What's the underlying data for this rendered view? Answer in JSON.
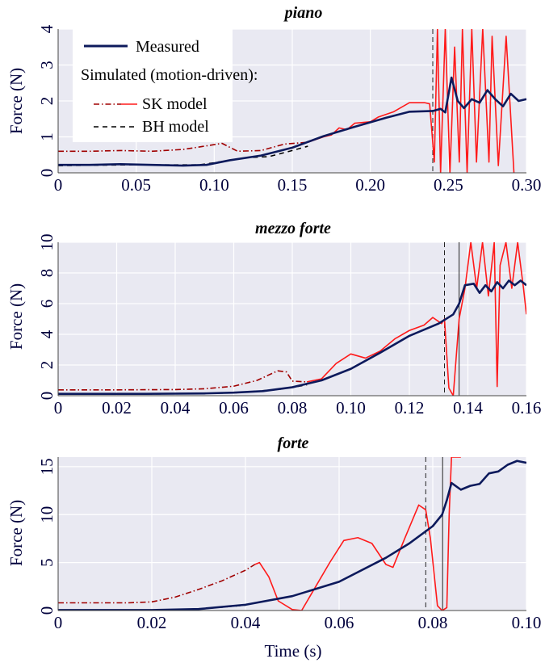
{
  "figure": {
    "xlabel": "Time (s)"
  },
  "legend": {
    "measured": "Measured",
    "header": "Simulated (motion-driven):",
    "sk": "SK model",
    "bh": "BH model"
  },
  "colors": {
    "measured": "#0d1a5c",
    "sk_smooth": "#a00000",
    "sk_osc": "#ff1a1a",
    "bh": "#000000",
    "plot_bg": "#e9e9f2",
    "grid": "#ffffff",
    "axis_text": "#00003c"
  },
  "chart_data": [
    {
      "type": "line",
      "title": "piano",
      "ylabel": "Force (N)",
      "xlim": [
        0,
        0.3
      ],
      "ylim": [
        0,
        4
      ],
      "xticks": [
        0,
        0.05,
        0.1,
        0.15,
        0.2,
        0.25,
        0.3
      ],
      "xtick_labels": [
        "0",
        "0.05",
        "0.10",
        "0.15",
        "0.20",
        "0.25",
        "0.30"
      ],
      "yticks": [
        0,
        1,
        2,
        3,
        4
      ],
      "ytick_labels": [
        "0",
        "1",
        "2",
        "3",
        "4"
      ],
      "vlines": [
        {
          "x": 0.24,
          "style": "dashed"
        }
      ],
      "series": [
        {
          "name": "Measured",
          "color": "#0d1a5c",
          "dash": "solid",
          "points": [
            [
              0,
              0.22
            ],
            [
              0.02,
              0.22
            ],
            [
              0.04,
              0.24
            ],
            [
              0.06,
              0.22
            ],
            [
              0.08,
              0.2
            ],
            [
              0.095,
              0.22
            ],
            [
              0.11,
              0.35
            ],
            [
              0.13,
              0.48
            ],
            [
              0.15,
              0.7
            ],
            [
              0.17,
              1.02
            ],
            [
              0.19,
              1.28
            ],
            [
              0.21,
              1.53
            ],
            [
              0.225,
              1.7
            ],
            [
              0.24,
              1.72
            ],
            [
              0.245,
              1.78
            ],
            [
              0.248,
              1.68
            ],
            [
              0.252,
              2.65
            ],
            [
              0.256,
              2.0
            ],
            [
              0.26,
              1.8
            ],
            [
              0.265,
              2.05
            ],
            [
              0.27,
              1.95
            ],
            [
              0.275,
              2.3
            ],
            [
              0.28,
              2.05
            ],
            [
              0.285,
              1.85
            ],
            [
              0.29,
              2.2
            ],
            [
              0.295,
              2.0
            ],
            [
              0.3,
              2.05
            ]
          ]
        },
        {
          "name": "SK model",
          "color": "#a00000",
          "dash": "dashdot",
          "points": [
            [
              0,
              0.6
            ],
            [
              0.02,
              0.6
            ],
            [
              0.04,
              0.62
            ],
            [
              0.06,
              0.6
            ],
            [
              0.08,
              0.65
            ],
            [
              0.095,
              0.75
            ],
            [
              0.105,
              0.82
            ],
            [
              0.115,
              0.6
            ],
            [
              0.13,
              0.62
            ],
            [
              0.145,
              0.8
            ],
            [
              0.16,
              0.85
            ]
          ]
        },
        {
          "name": "SK model",
          "color": "#ff1a1a",
          "dash": "solid",
          "points": [
            [
              0.16,
              0.85
            ],
            [
              0.17,
              1.0
            ],
            [
              0.175,
              1.05
            ],
            [
              0.18,
              1.25
            ],
            [
              0.185,
              1.2
            ],
            [
              0.19,
              1.38
            ],
            [
              0.2,
              1.42
            ],
            [
              0.205,
              1.55
            ],
            [
              0.215,
              1.7
            ],
            [
              0.225,
              1.95
            ],
            [
              0.235,
              1.95
            ],
            [
              0.238,
              1.92
            ],
            [
              0.241,
              0.3
            ],
            [
              0.243,
              4.0
            ],
            [
              0.245,
              0.0
            ],
            [
              0.248,
              4.0
            ],
            [
              0.251,
              0.0
            ],
            [
              0.254,
              3.5
            ],
            [
              0.257,
              0.3
            ],
            [
              0.259,
              4.0
            ],
            [
              0.262,
              0.0
            ],
            [
              0.265,
              4.0
            ],
            [
              0.268,
              0.3
            ],
            [
              0.272,
              4.0
            ],
            [
              0.276,
              0.3
            ],
            [
              0.278,
              3.8
            ],
            [
              0.282,
              0.2
            ],
            [
              0.287,
              3.8
            ],
            [
              0.292,
              0.0
            ]
          ]
        },
        {
          "name": "BH model",
          "color": "#000000",
          "dash": "dashed",
          "points": [
            [
              0,
              0.2
            ],
            [
              0.04,
              0.22
            ],
            [
              0.07,
              0.22
            ],
            [
              0.09,
              0.22
            ],
            [
              0.1,
              0.28
            ],
            [
              0.12,
              0.42
            ],
            [
              0.135,
              0.45
            ],
            [
              0.15,
              0.62
            ],
            [
              0.16,
              0.74
            ]
          ]
        }
      ]
    },
    {
      "type": "line",
      "title": "mezzo forte",
      "ylabel": "Force (N)",
      "xlim": [
        0,
        0.16
      ],
      "ylim": [
        0,
        10
      ],
      "xticks": [
        0,
        0.02,
        0.04,
        0.06,
        0.08,
        0.1,
        0.12,
        0.14,
        0.16
      ],
      "xtick_labels": [
        "0",
        "0.02",
        "0.04",
        "0.06",
        "0.08",
        "0.10",
        "0.12",
        "0.14",
        "0.16"
      ],
      "yticks": [
        0,
        2,
        4,
        6,
        8,
        10
      ],
      "ytick_labels": [
        "0",
        "2",
        "4",
        "6",
        "8",
        "10"
      ],
      "vlines": [
        {
          "x": 0.132,
          "style": "dashed"
        },
        {
          "x": 0.137,
          "style": "solid"
        }
      ],
      "series": [
        {
          "name": "Measured",
          "color": "#0d1a5c",
          "dash": "solid",
          "points": [
            [
              0,
              0.12
            ],
            [
              0.03,
              0.12
            ],
            [
              0.05,
              0.15
            ],
            [
              0.06,
              0.2
            ],
            [
              0.07,
              0.3
            ],
            [
              0.08,
              0.55
            ],
            [
              0.09,
              1.0
            ],
            [
              0.1,
              1.75
            ],
            [
              0.11,
              2.8
            ],
            [
              0.12,
              3.9
            ],
            [
              0.13,
              4.7
            ],
            [
              0.135,
              5.3
            ],
            [
              0.137,
              6.0
            ],
            [
              0.139,
              7.2
            ],
            [
              0.142,
              7.3
            ],
            [
              0.144,
              6.7
            ],
            [
              0.146,
              7.2
            ],
            [
              0.148,
              6.8
            ],
            [
              0.15,
              7.4
            ],
            [
              0.152,
              7.0
            ],
            [
              0.154,
              7.5
            ],
            [
              0.156,
              7.2
            ],
            [
              0.158,
              7.5
            ],
            [
              0.16,
              7.2
            ]
          ]
        },
        {
          "name": "SK model",
          "color": "#a00000",
          "dash": "dashdot",
          "points": [
            [
              0,
              0.38
            ],
            [
              0.02,
              0.38
            ],
            [
              0.04,
              0.4
            ],
            [
              0.05,
              0.45
            ],
            [
              0.06,
              0.62
            ],
            [
              0.068,
              1.0
            ],
            [
              0.075,
              1.62
            ],
            [
              0.078,
              1.55
            ],
            [
              0.08,
              0.95
            ],
            [
              0.085,
              0.9
            ]
          ]
        },
        {
          "name": "SK model",
          "color": "#ff1a1a",
          "dash": "solid",
          "points": [
            [
              0.085,
              0.9
            ],
            [
              0.09,
              1.1
            ],
            [
              0.095,
              2.1
            ],
            [
              0.1,
              2.72
            ],
            [
              0.105,
              2.45
            ],
            [
              0.11,
              2.9
            ],
            [
              0.115,
              3.7
            ],
            [
              0.12,
              4.25
            ],
            [
              0.125,
              4.6
            ],
            [
              0.128,
              5.1
            ],
            [
              0.131,
              4.7
            ],
            [
              0.132,
              5.0
            ],
            [
              0.1335,
              0.5
            ],
            [
              0.135,
              0.0
            ],
            [
              0.137,
              5.0
            ],
            [
              0.139,
              7.0
            ],
            [
              0.141,
              10
            ],
            [
              0.143,
              7.0
            ],
            [
              0.145,
              10
            ],
            [
              0.147,
              6.5
            ],
            [
              0.149,
              10
            ],
            [
              0.15,
              0.6
            ],
            [
              0.151,
              8.5
            ],
            [
              0.153,
              10
            ],
            [
              0.155,
              7.0
            ],
            [
              0.157,
              10
            ],
            [
              0.159,
              7.0
            ],
            [
              0.16,
              5.3
            ]
          ]
        },
        {
          "name": "BH model",
          "color": "#000000",
          "dash": "dashed",
          "points": [
            [
              0,
              0.1
            ],
            [
              0.04,
              0.12
            ],
            [
              0.06,
              0.18
            ],
            [
              0.075,
              0.4
            ],
            [
              0.085,
              0.7
            ]
          ]
        }
      ]
    },
    {
      "type": "line",
      "title": "forte",
      "ylabel": "Force (N)",
      "xlim": [
        0,
        0.1
      ],
      "ylim": [
        0,
        16
      ],
      "xticks": [
        0,
        0.02,
        0.04,
        0.06,
        0.08,
        0.1
      ],
      "xtick_labels": [
        "0",
        "0.02",
        "0.04",
        "0.06",
        "0.08",
        "0.10"
      ],
      "yticks": [
        0,
        5,
        10,
        15
      ],
      "ytick_labels": [
        "0",
        "5",
        "10",
        "15"
      ],
      "vlines": [
        {
          "x": 0.0785,
          "style": "dashed"
        },
        {
          "x": 0.0821,
          "style": "solid"
        }
      ],
      "series": [
        {
          "name": "Measured",
          "color": "#0d1a5c",
          "dash": "solid",
          "points": [
            [
              0,
              0.05
            ],
            [
              0.02,
              0.05
            ],
            [
              0.03,
              0.15
            ],
            [
              0.04,
              0.6
            ],
            [
              0.05,
              1.5
            ],
            [
              0.06,
              3.0
            ],
            [
              0.07,
              5.5
            ],
            [
              0.075,
              7.0
            ],
            [
              0.08,
              8.8
            ],
            [
              0.082,
              10
            ],
            [
              0.083,
              11.5
            ],
            [
              0.084,
              13.3
            ],
            [
              0.086,
              12.6
            ],
            [
              0.088,
              13.0
            ],
            [
              0.09,
              13.2
            ],
            [
              0.092,
              14.3
            ],
            [
              0.094,
              14.5
            ],
            [
              0.096,
              15.2
            ],
            [
              0.098,
              15.6
            ],
            [
              0.1,
              15.4
            ]
          ]
        },
        {
          "name": "SK model",
          "color": "#a00000",
          "dash": "dashdot",
          "points": [
            [
              0,
              0.8
            ],
            [
              0.015,
              0.8
            ],
            [
              0.02,
              0.9
            ],
            [
              0.025,
              1.4
            ],
            [
              0.03,
              2.2
            ],
            [
              0.035,
              3.1
            ],
            [
              0.04,
              4.2
            ],
            [
              0.042,
              4.8
            ]
          ]
        },
        {
          "name": "SK model",
          "color": "#ff1a1a",
          "dash": "solid",
          "points": [
            [
              0.042,
              4.8
            ],
            [
              0.043,
              5.0
            ],
            [
              0.045,
              3.5
            ],
            [
              0.047,
              1.0
            ],
            [
              0.05,
              0.1
            ],
            [
              0.052,
              0.0
            ],
            [
              0.055,
              2.5
            ],
            [
              0.058,
              5.0
            ],
            [
              0.061,
              7.3
            ],
            [
              0.064,
              7.6
            ],
            [
              0.067,
              7.0
            ],
            [
              0.07,
              4.8
            ],
            [
              0.0715,
              4.5
            ],
            [
              0.074,
              7.5
            ],
            [
              0.077,
              11.0
            ],
            [
              0.0785,
              10.5
            ],
            [
              0.0795,
              7.5
            ],
            [
              0.081,
              0.5
            ],
            [
              0.082,
              0.0
            ],
            [
              0.083,
              0.3
            ],
            [
              0.0835,
              10
            ],
            [
              0.084,
              16
            ],
            [
              0.086,
              16
            ]
          ]
        },
        {
          "name": "BH model",
          "color": "#000000",
          "dash": "dashed",
          "points": [
            [
              0,
              0.05
            ],
            [
              0.02,
              0.05
            ],
            [
              0.03,
              0.15
            ],
            [
              0.04,
              0.55
            ]
          ]
        }
      ]
    }
  ]
}
